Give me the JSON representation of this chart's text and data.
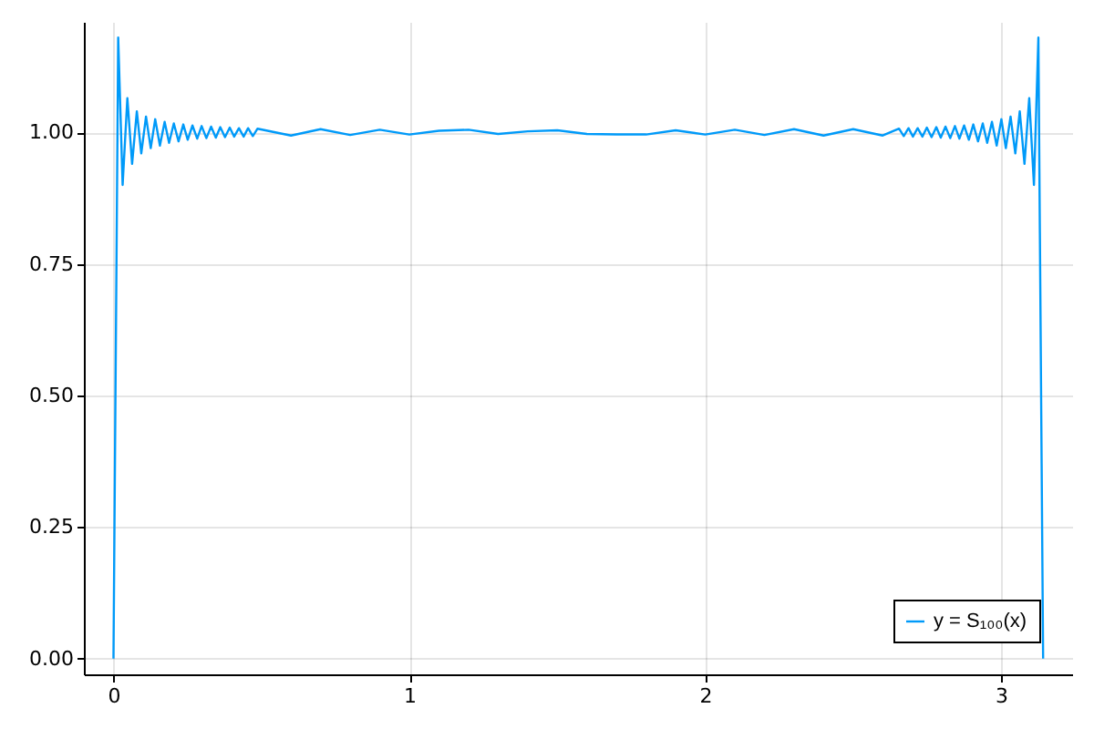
{
  "chart_data": {
    "type": "line",
    "x": [
      0,
      0.016,
      0.031,
      0.047,
      0.063,
      0.079,
      0.094,
      0.11,
      0.126,
      0.141,
      0.157,
      0.173,
      0.188,
      0.204,
      0.22,
      0.236,
      0.251,
      0.267,
      0.283,
      0.298,
      0.314,
      0.33,
      0.346,
      0.361,
      0.377,
      0.393,
      0.408,
      0.424,
      0.44,
      0.455,
      0.471,
      0.487,
      0.6,
      0.7,
      0.8,
      0.9,
      1.0,
      1.1,
      1.2,
      1.3,
      1.4,
      1.5,
      1.6,
      1.7,
      1.8,
      1.9,
      2.0,
      2.1,
      2.2,
      2.3,
      2.4,
      2.5,
      2.6,
      2.655,
      2.671,
      2.687,
      2.702,
      2.718,
      2.734,
      2.749,
      2.765,
      2.781,
      2.796,
      2.812,
      2.828,
      2.844,
      2.859,
      2.875,
      2.891,
      2.906,
      2.922,
      2.938,
      2.953,
      2.969,
      2.985,
      3.001,
      3.016,
      3.032,
      3.048,
      3.063,
      3.079,
      3.095,
      3.111,
      3.126,
      3.142
    ],
    "series": [
      {
        "name": "y = S₁₀₀(x)",
        "color": "#009af9",
        "values": [
          0,
          1.18,
          0.9,
          1.065,
          0.94,
          1.04,
          0.96,
          1.03,
          0.97,
          1.025,
          0.975,
          1.02,
          0.98,
          1.017,
          0.983,
          1.015,
          0.986,
          1.013,
          0.988,
          1.012,
          0.989,
          1.011,
          0.99,
          1.01,
          0.991,
          1.009,
          0.992,
          1.008,
          0.992,
          1.008,
          0.993,
          1.007,
          0.994,
          1.006,
          0.995,
          1.005,
          0.996,
          1.003,
          1.005,
          0.997,
          1.002,
          1.004,
          0.997,
          0.996,
          0.996,
          1.004,
          0.996,
          1.005,
          0.995,
          1.006,
          0.994,
          1.006,
          0.994,
          1.007,
          0.993,
          1.008,
          0.992,
          1.008,
          0.992,
          1.009,
          0.991,
          1.01,
          0.99,
          1.011,
          0.989,
          1.012,
          0.988,
          1.013,
          0.986,
          1.015,
          0.983,
          1.017,
          0.98,
          1.02,
          0.975,
          1.025,
          0.97,
          1.03,
          0.96,
          1.04,
          0.94,
          1.065,
          0.9,
          1.18,
          0
        ]
      }
    ],
    "xlim": [
      -0.1,
      3.24
    ],
    "ylim": [
      -0.03,
      1.21
    ],
    "xticks": [
      0,
      1,
      2,
      3
    ],
    "yticks": [
      {
        "value": 0,
        "label": "0.00"
      },
      {
        "value": 0.25,
        "label": "0.25"
      },
      {
        "value": 0.5,
        "label": "0.50"
      },
      {
        "value": 0.75,
        "label": "0.75"
      },
      {
        "value": 1,
        "label": "1.00"
      }
    ],
    "grid": true,
    "legend": "bottom right",
    "line_style": "solid"
  }
}
